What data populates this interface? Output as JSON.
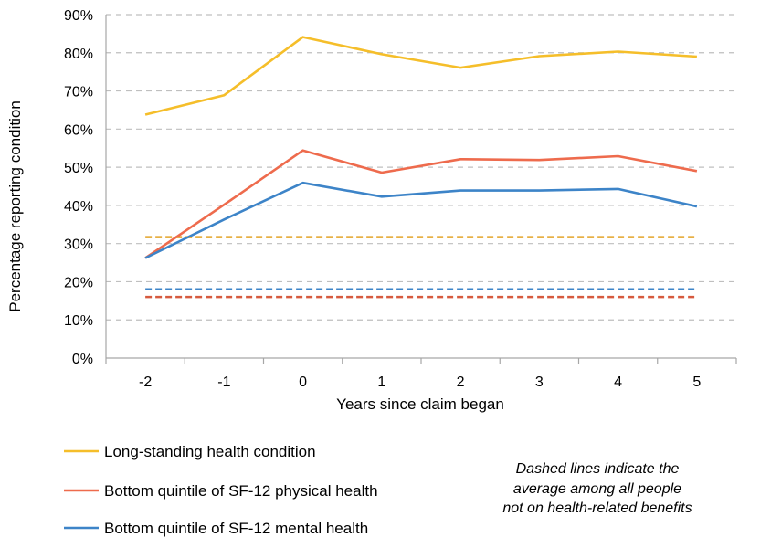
{
  "chart_data": {
    "type": "line",
    "xlabel": "Years since claim began",
    "ylabel": "Percentage reporting condition",
    "categories": [
      "-2",
      "-1",
      "0",
      "1",
      "2",
      "3",
      "4",
      "5"
    ],
    "ylim": [
      0,
      90
    ],
    "yticks": [
      "0%",
      "10%",
      "20%",
      "30%",
      "40%",
      "50%",
      "60%",
      "70%",
      "80%",
      "90%"
    ],
    "grid": "horizontal-dashed",
    "legend_position": "bottom-left",
    "series": [
      {
        "name": "Long-standing health condition",
        "color": "#F5BE2A",
        "style": "solid",
        "values": [
          63.8,
          68.9,
          84.1,
          79.6,
          76.1,
          79.1,
          80.3,
          79.0
        ]
      },
      {
        "name": "Bottom quintile of SF-12 physical health",
        "color": "#EE6B4D",
        "style": "solid",
        "values": [
          26.2,
          40.2,
          54.4,
          48.6,
          52.1,
          51.9,
          52.9,
          49.0
        ]
      },
      {
        "name": "Bottom quintile of SF-12 mental health",
        "color": "#3D84C8",
        "style": "solid",
        "values": [
          26.2,
          36.3,
          45.9,
          42.3,
          43.9,
          43.9,
          44.3,
          39.7
        ]
      }
    ],
    "reference_lines": [
      {
        "color": "#E4A52B",
        "style": "dashed",
        "value": 31.7
      },
      {
        "color": "#3D84C8",
        "style": "dashed",
        "value": 18.0
      },
      {
        "color": "#D65A3E",
        "style": "dashed",
        "value": 16.0
      }
    ],
    "note": [
      "Dashed lines indicate the",
      "average among all people",
      "not on health-related benefits"
    ]
  }
}
